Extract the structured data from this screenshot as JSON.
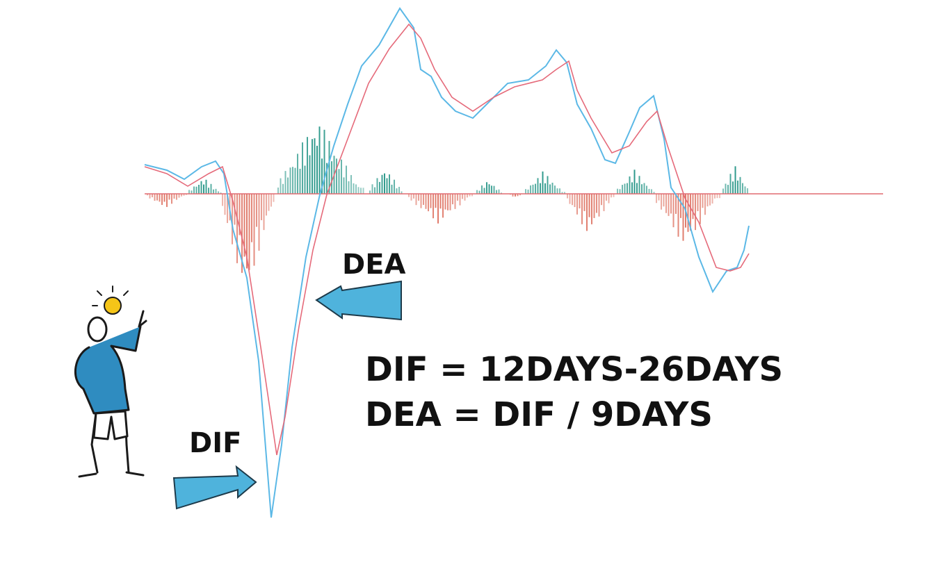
{
  "labels": {
    "dea": "DEA",
    "dif": "DIF"
  },
  "formulas": [
    "DIF = 12DAYS-26DAYS",
    "DEA = DIF / 9DAYS"
  ]
}
